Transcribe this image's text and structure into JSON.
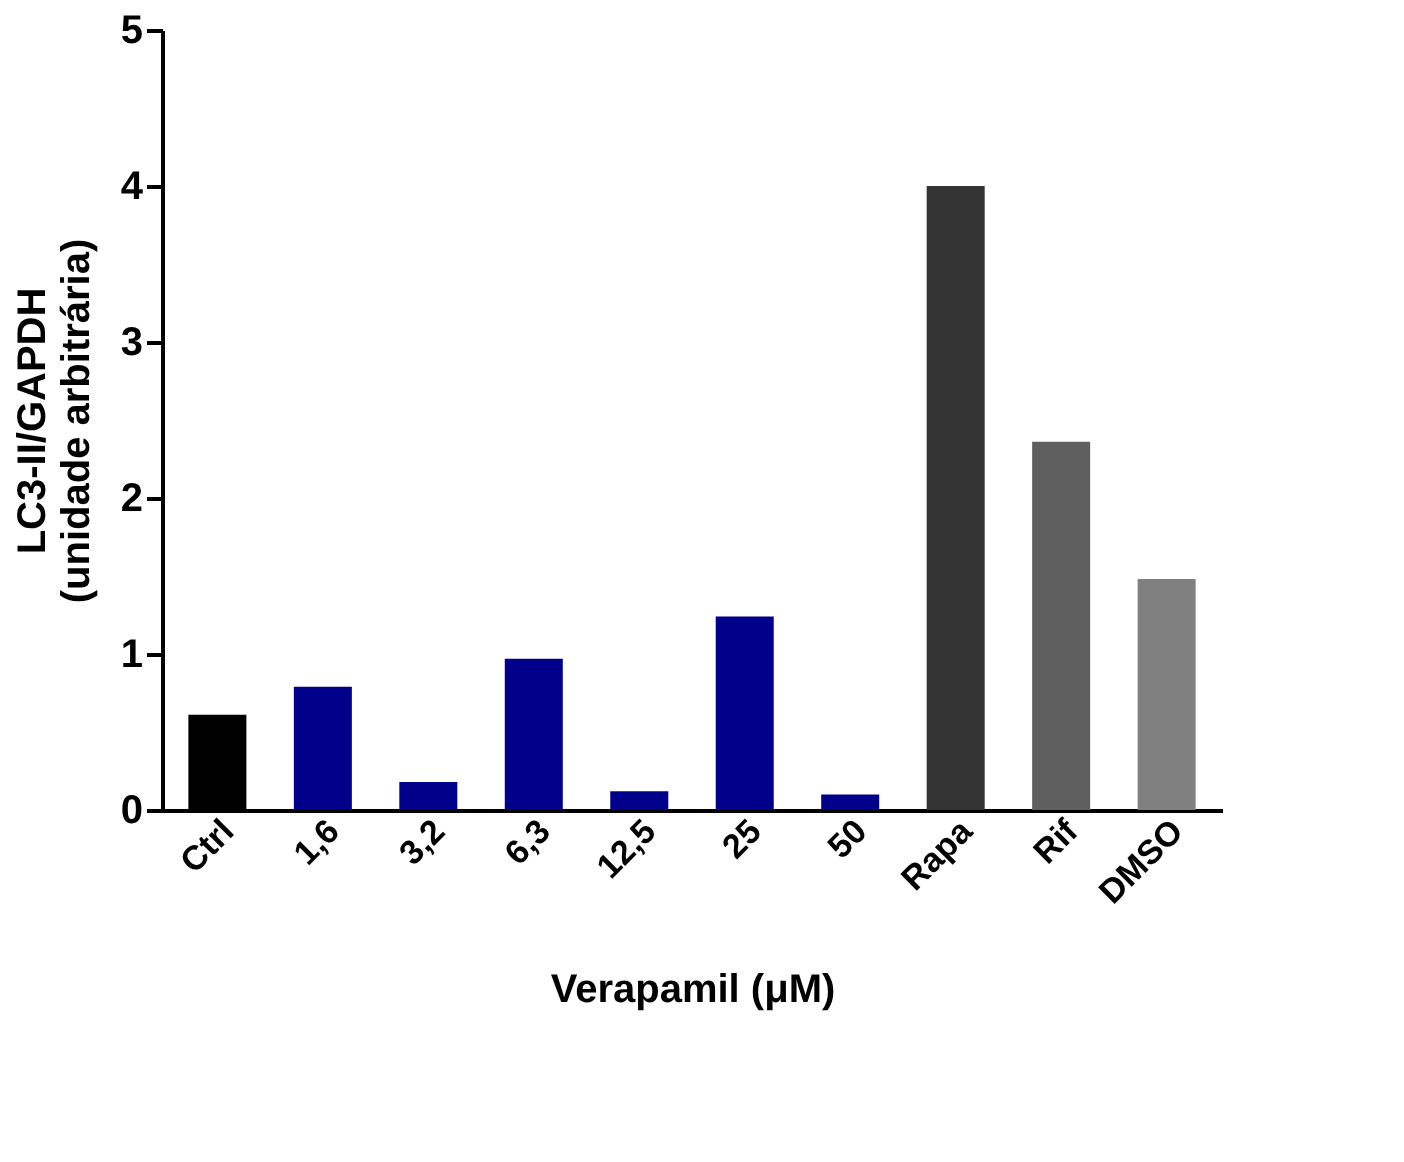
{
  "chart_data": {
    "type": "bar",
    "xlabel": "Verapamil (μM)",
    "ylabel": "LC3-II/GAPDH\n(unidade arbitrária)",
    "categories": [
      "Ctrl",
      "1,6",
      "3,2",
      "6,3",
      "12,5",
      "25",
      "50",
      "Rapa",
      "Rif",
      "DMSO"
    ],
    "values": [
      0.61,
      0.79,
      0.18,
      0.97,
      0.12,
      1.24,
      0.1,
      4.0,
      2.36,
      1.48
    ],
    "colors": [
      "#000000",
      "#00008b",
      "#00008b",
      "#00008b",
      "#00008b",
      "#00008b",
      "#00008b",
      "#333333",
      "#5f5f5f",
      "#808080"
    ],
    "ylim": [
      0,
      5
    ],
    "yticks": [
      0,
      1,
      2,
      3,
      4,
      5
    ],
    "grid": false
  }
}
